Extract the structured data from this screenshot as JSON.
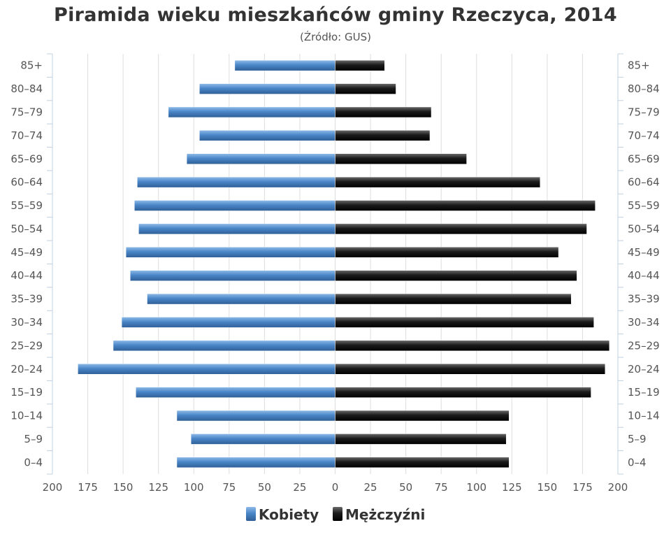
{
  "chart_data": {
    "type": "bar",
    "orientation": "horizontal-population-pyramid",
    "title": "Piramida wieku mieszkańców gminy Rzeczyca, 2014",
    "subtitle": "(Źródło: GUS)",
    "categories": [
      "85+",
      "80–84",
      "75–79",
      "70–74",
      "65–69",
      "60–64",
      "55–59",
      "50–54",
      "45–49",
      "40–44",
      "35–39",
      "30–34",
      "25–29",
      "20–24",
      "15–19",
      "10–14",
      "5–9",
      "0–4"
    ],
    "series": [
      {
        "name": "Kobiety",
        "color": "#4a86c8",
        "values": [
          71,
          96,
          118,
          96,
          105,
          140,
          142,
          139,
          148,
          145,
          133,
          151,
          157,
          182,
          141,
          112,
          102,
          112
        ]
      },
      {
        "name": "Mężczyźni",
        "color": "#222222",
        "values": [
          35,
          43,
          68,
          67,
          93,
          145,
          184,
          178,
          158,
          171,
          167,
          183,
          194,
          191,
          181,
          123,
          121,
          123
        ]
      }
    ],
    "xlim": [
      -200,
      200
    ],
    "x_ticks": [
      -200,
      -175,
      -150,
      -125,
      -100,
      -75,
      -50,
      -25,
      0,
      25,
      50,
      75,
      100,
      125,
      150,
      175,
      200
    ],
    "x_tick_labels": [
      "200",
      "175",
      "150",
      "125",
      "100",
      "75",
      "50",
      "25",
      "0",
      "25",
      "50",
      "75",
      "100",
      "125",
      "150",
      "175",
      "200"
    ],
    "grid": true,
    "legend": "bottom-center"
  }
}
